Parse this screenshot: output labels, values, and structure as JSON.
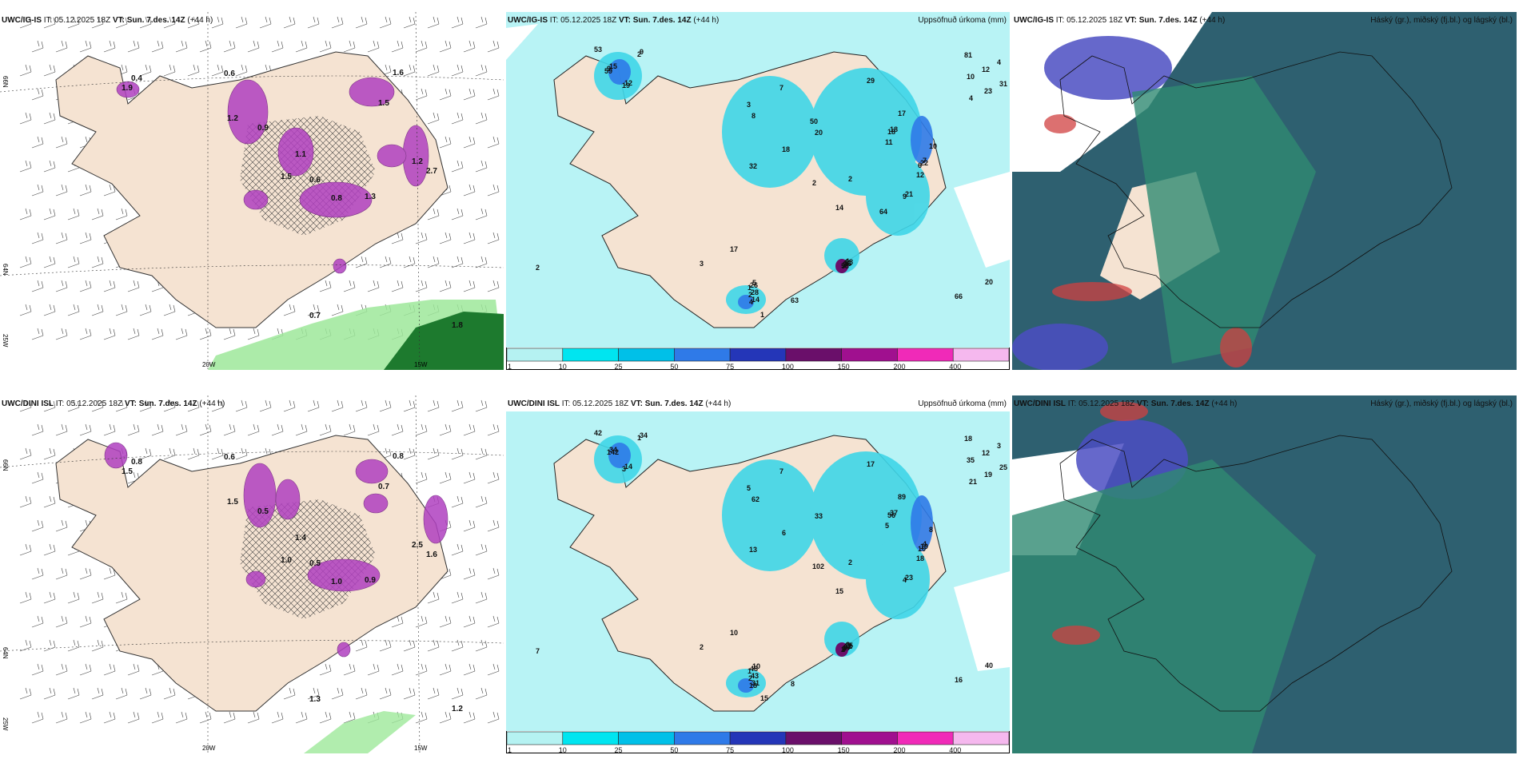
{
  "top": {
    "left": {
      "model": "UWC/IG-IS",
      "it_label": "IT:",
      "it_value": "05.12.2025 18Z",
      "vt_label": "VT:",
      "vt_value": "Sun. 7.des. 14Z",
      "lead": "(+44 h)"
    },
    "middle": {
      "model": "UWC/IG-IS",
      "it_label": "IT:",
      "it_value": "05.12.2025 18Z",
      "vt_label": "VT:",
      "vt_value": "Sun. 7.des. 14Z",
      "lead": "(+44 h)",
      "right_title": "Uppsöfnuð úrkoma (mm)"
    },
    "right": {
      "model": "UWC/IG-IS",
      "it_label": "IT:",
      "it_value": "05.12.2025 18Z",
      "vt_label": "VT:",
      "vt_value": "Sun. 7.des. 14Z",
      "lead": "(+44 h)",
      "right_title": "Háský (gr.), miðský (fj.bl.) og lágský (bl.)"
    }
  },
  "bottom": {
    "left": {
      "model": "UWC/DINI ISL",
      "it_label": "IT:",
      "it_value": "05.12.2025 18Z",
      "vt_label": "VT:",
      "vt_value": "Sun. 7.des. 14Z",
      "lead": "(+44 h)"
    },
    "middle": {
      "model": "UWC/DINI ISL",
      "it_label": "IT:",
      "it_value": "05.12.2025 18Z",
      "vt_label": "VT:",
      "vt_value": "Sun. 7.des. 14Z",
      "lead": "(+44 h)",
      "right_title": "Uppsöfnuð úrkoma (mm)"
    },
    "right": {
      "model": "UWC/DINI ISL",
      "it_label": "IT:",
      "it_value": "05.12.2025 18Z",
      "vt_label": "VT:",
      "vt_value": "Sun. 7.des. 14Z",
      "lead": "(+44 h)",
      "right_title": "Háský (gr.), miðský (fj.bl.) og lágský (bl.)"
    }
  },
  "axis_labels": {
    "lat66": "66N",
    "lat64": "64N",
    "lon25": "25W",
    "lon20": "20W",
    "lon15": "15W"
  },
  "colorbar": {
    "ticks": [
      "1",
      "10",
      "25",
      "50",
      "75",
      "100",
      "150",
      "200",
      "400"
    ],
    "colors": [
      "#b5f2f2",
      "#00e5f0",
      "#00c0e8",
      "#2f7ae8",
      "#2436b8",
      "#6a0f6a",
      "#a0108f",
      "#f02ab8",
      "#f5b8ee"
    ]
  },
  "colors": {
    "land": "#f5e3d2",
    "sea_precip": "#b8f3f5",
    "high_cloud": "#2e6070",
    "mid_cloud": "#2f8a72",
    "low_cloud": "#4b4dc2",
    "snow_purple": "#b040c0",
    "green_precip": "#9ee89a"
  },
  "top_left_values": [
    "0.6",
    "0.6",
    "0.8",
    "1.6",
    "2.7",
    "1.8",
    "1.9",
    "0.9",
    "1.1",
    "1.3",
    "1.5",
    "1.2",
    "0.7",
    "0.4",
    "1.2",
    "1.5"
  ],
  "top_mid_values": [
    "53",
    "8",
    "11",
    "7",
    "5",
    "1",
    "3",
    "4",
    "15",
    "20",
    "12",
    "18",
    "14",
    "28",
    "66",
    "23",
    "12",
    "18",
    "14",
    "21",
    "28",
    "11",
    "17",
    "31",
    "9",
    "32",
    "29",
    "22",
    "26",
    "26",
    "20",
    "10",
    "9",
    "2",
    "17",
    "18",
    "4",
    "2",
    "1",
    "12",
    "19",
    "7",
    "10",
    "9",
    "2",
    "1",
    "2",
    "4",
    "2",
    "3",
    "2",
    "6",
    "1",
    "53",
    "63",
    "81",
    "59",
    "50",
    "64"
  ],
  "bot_left_values": [
    "0.6",
    "0.5",
    "1.0",
    "0.8",
    "1.6",
    "1.2",
    "1.5",
    "0.5",
    "1.4",
    "0.9",
    "0.7",
    "2.5",
    "1.3",
    "0.8",
    "1.5",
    "1.0"
  ],
  "bot_mid_values": [
    "42",
    "62",
    "5",
    "4",
    "10",
    "3",
    "2",
    "21",
    "34",
    "33",
    "18",
    "37",
    "31",
    "25",
    "16",
    "19",
    "14",
    "6",
    "15",
    "23",
    "43",
    "12",
    "10",
    "25",
    "34",
    "13",
    "17",
    "19",
    "48",
    "67",
    "40",
    "35",
    "142",
    "102",
    "89",
    "56",
    "18",
    "17",
    "15",
    "12",
    "3",
    "7",
    "8",
    "4",
    "2",
    "6",
    "7",
    "3",
    "1",
    "5",
    "2",
    "10",
    "1",
    "2",
    "8",
    "18"
  ]
}
